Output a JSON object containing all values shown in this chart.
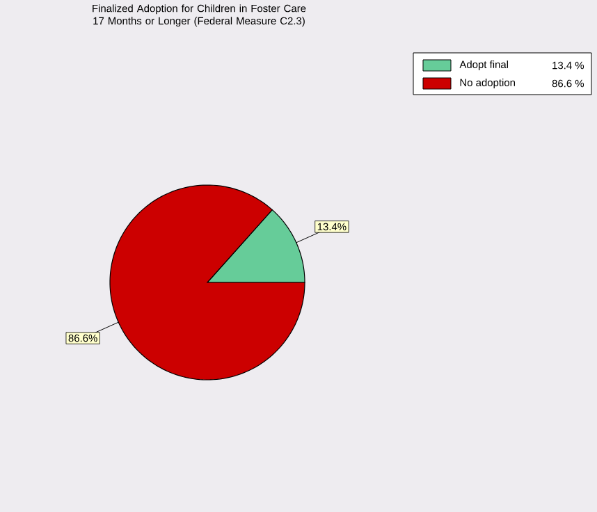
{
  "chart_data": {
    "type": "pie",
    "title": "Finalized Adoption for Children in Foster Care 17 Months or Longer (Federal Measure C2.3)",
    "categories": [
      "Adopt final",
      "No adoption"
    ],
    "values": [
      13.4,
      86.6
    ],
    "value_labels": [
      "13.4%",
      "86.6%"
    ],
    "annotations": [
      "13.4 %",
      "86.6 %"
    ],
    "colors": [
      "#66cc99",
      "#cc0000"
    ],
    "legend": "top right"
  }
}
